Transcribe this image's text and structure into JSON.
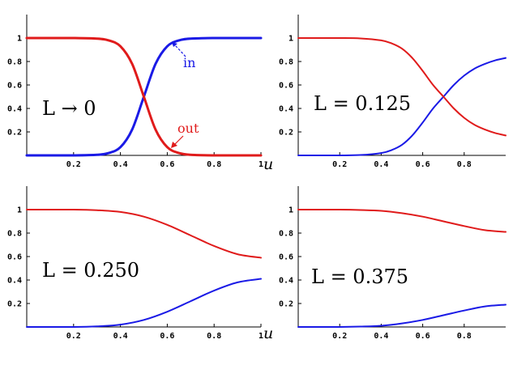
{
  "colors": {
    "in": "#1a1ae6",
    "out": "#e01b1b",
    "axis": "#000000"
  },
  "chart_data": [
    {
      "type": "line",
      "annotation": "L → 0",
      "xlabel": "u",
      "xlim": [
        0,
        1
      ],
      "ylim": [
        0,
        1.2
      ],
      "x_ticks": [
        0.2,
        0.4,
        0.6,
        0.8,
        1
      ],
      "x_tick_labels": [
        "0.2",
        "0.4",
        "0.6",
        "0.8",
        "1"
      ],
      "y_ticks": [
        0.2,
        0.4,
        0.6,
        0.8,
        1
      ],
      "y_tick_labels": [
        "0.2",
        "0.4",
        "0.6",
        "0.8",
        "1"
      ],
      "series": [
        {
          "name": "in",
          "color": "#1a1ae6",
          "x": [
            0.0,
            0.1,
            0.2,
            0.3,
            0.35,
            0.4,
            0.45,
            0.5,
            0.55,
            0.6,
            0.65,
            0.7,
            0.8,
            0.9,
            1.0
          ],
          "y": [
            0.0,
            0.0,
            0.0,
            0.005,
            0.02,
            0.07,
            0.22,
            0.5,
            0.78,
            0.93,
            0.98,
            0.995,
            1.0,
            1.0,
            1.0
          ]
        },
        {
          "name": "out",
          "color": "#e01b1b",
          "x": [
            0.0,
            0.1,
            0.2,
            0.3,
            0.35,
            0.4,
            0.45,
            0.5,
            0.55,
            0.6,
            0.65,
            0.7,
            0.8,
            0.9,
            1.0
          ],
          "y": [
            1.0,
            1.0,
            1.0,
            0.995,
            0.98,
            0.93,
            0.78,
            0.5,
            0.22,
            0.07,
            0.02,
            0.005,
            0.0,
            0.0,
            0.0
          ]
        }
      ],
      "labels": {
        "in": "in",
        "out": "out"
      }
    },
    {
      "type": "line",
      "annotation": "L = 0.125",
      "xlim": [
        0,
        1
      ],
      "ylim": [
        0,
        1.2
      ],
      "x_ticks": [
        0.2,
        0.4,
        0.6,
        0.8
      ],
      "x_tick_labels": [
        "0.2",
        "0.4",
        "0.6",
        "0.8"
      ],
      "y_ticks": [
        0.2,
        0.4,
        0.6,
        0.8,
        1
      ],
      "y_tick_labels": [
        "0.2",
        "0.4",
        "0.6",
        "0.8",
        "1"
      ],
      "series": [
        {
          "color": "#1a1ae6",
          "x": [
            0.0,
            0.1,
            0.2,
            0.3,
            0.4,
            0.45,
            0.5,
            0.55,
            0.6,
            0.65,
            0.7,
            0.75,
            0.8,
            0.85,
            0.9,
            0.95,
            1.0
          ],
          "y": [
            0.0,
            0.0,
            0.0,
            0.003,
            0.02,
            0.045,
            0.09,
            0.17,
            0.28,
            0.4,
            0.5,
            0.6,
            0.68,
            0.74,
            0.78,
            0.81,
            0.83
          ]
        },
        {
          "color": "#e01b1b",
          "x": [
            0.0,
            0.1,
            0.2,
            0.3,
            0.4,
            0.45,
            0.5,
            0.55,
            0.6,
            0.65,
            0.7,
            0.75,
            0.8,
            0.85,
            0.9,
            0.95,
            1.0
          ],
          "y": [
            1.0,
            1.0,
            1.0,
            0.997,
            0.98,
            0.955,
            0.91,
            0.83,
            0.72,
            0.6,
            0.5,
            0.4,
            0.32,
            0.26,
            0.22,
            0.19,
            0.17
          ]
        }
      ]
    },
    {
      "type": "line",
      "annotation": "L = 0.250",
      "xlabel": "u",
      "xlim": [
        0,
        1
      ],
      "ylim": [
        0,
        1.2
      ],
      "x_ticks": [
        0.2,
        0.4,
        0.6,
        0.8,
        1
      ],
      "x_tick_labels": [
        "0.2",
        "0.4",
        "0.6",
        "0.8",
        "1"
      ],
      "y_ticks": [
        0.2,
        0.4,
        0.6,
        0.8,
        1
      ],
      "y_tick_labels": [
        "0.2",
        "0.4",
        "0.6",
        "0.8",
        "1"
      ],
      "series": [
        {
          "color": "#1a1ae6",
          "x": [
            0.0,
            0.2,
            0.3,
            0.4,
            0.5,
            0.6,
            0.7,
            0.8,
            0.9,
            1.0
          ],
          "y": [
            0.0,
            0.0,
            0.005,
            0.02,
            0.06,
            0.13,
            0.22,
            0.31,
            0.38,
            0.41
          ]
        },
        {
          "color": "#e01b1b",
          "x": [
            0.0,
            0.2,
            0.3,
            0.4,
            0.5,
            0.6,
            0.7,
            0.8,
            0.9,
            1.0
          ],
          "y": [
            1.0,
            1.0,
            0.995,
            0.98,
            0.94,
            0.87,
            0.78,
            0.69,
            0.62,
            0.59
          ]
        }
      ]
    },
    {
      "type": "line",
      "annotation": "L = 0.375",
      "xlim": [
        0,
        1
      ],
      "ylim": [
        0,
        1.2
      ],
      "x_ticks": [
        0.2,
        0.4,
        0.6,
        0.8
      ],
      "x_tick_labels": [
        "0.2",
        "0.4",
        "0.6",
        "0.8"
      ],
      "y_ticks": [
        0.2,
        0.4,
        0.6,
        0.8,
        1
      ],
      "y_tick_labels": [
        "0.2",
        "0.4",
        "0.6",
        "0.8",
        "1"
      ],
      "series": [
        {
          "color": "#1a1ae6",
          "x": [
            0.0,
            0.2,
            0.3,
            0.4,
            0.5,
            0.6,
            0.7,
            0.8,
            0.9,
            1.0
          ],
          "y": [
            0.0,
            0.0,
            0.003,
            0.01,
            0.03,
            0.06,
            0.1,
            0.14,
            0.175,
            0.19
          ]
        },
        {
          "color": "#e01b1b",
          "x": [
            0.0,
            0.2,
            0.3,
            0.4,
            0.5,
            0.6,
            0.7,
            0.8,
            0.9,
            1.0
          ],
          "y": [
            1.0,
            1.0,
            0.997,
            0.99,
            0.97,
            0.94,
            0.9,
            0.86,
            0.825,
            0.81
          ]
        }
      ]
    }
  ]
}
